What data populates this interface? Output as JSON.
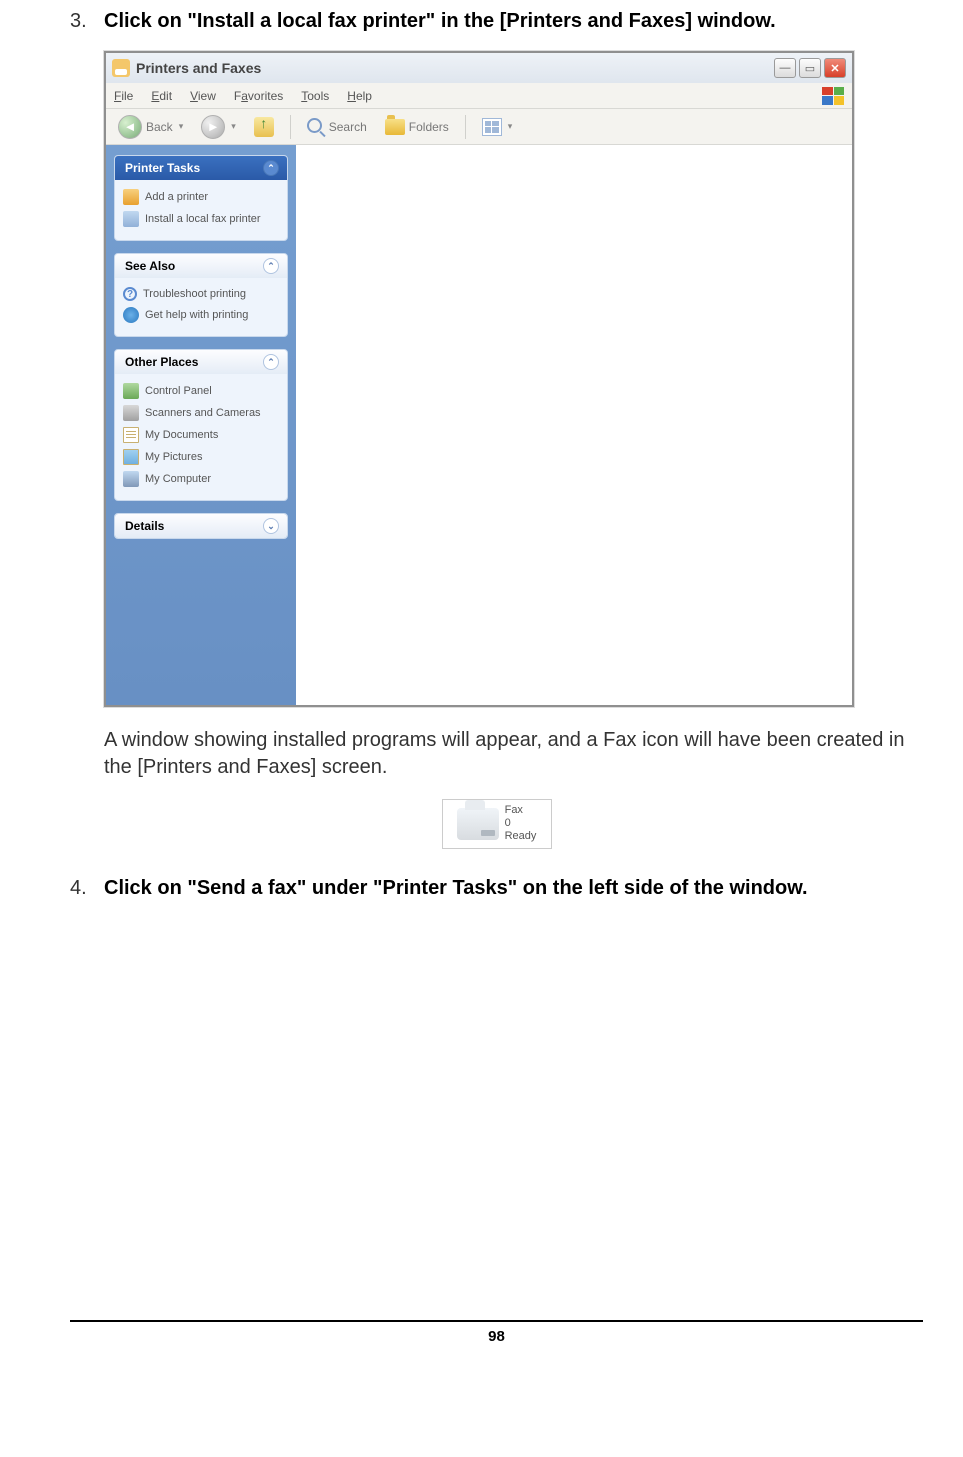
{
  "steps": {
    "s3": {
      "num": "3.",
      "text": "Click on \"Install a local fax printer\" in the [Printers and Faxes] window."
    },
    "desc": "A window showing installed programs will appear, and a Fax icon will have been created in the [Printers and Faxes] screen.",
    "s4": {
      "num": "4.",
      "text": "Click on \"Send a fax\" under \"Printer Tasks\" on the left side of the window."
    }
  },
  "window": {
    "title": "Printers and Faxes",
    "menus": {
      "file": "File",
      "edit": "Edit",
      "view": "View",
      "favorites": "Favorites",
      "tools": "Tools",
      "help": "Help"
    },
    "toolbar": {
      "back": "Back",
      "search": "Search",
      "folders": "Folders"
    },
    "panels": {
      "printer_tasks": {
        "title": "Printer Tasks",
        "items": {
          "add": "Add a printer",
          "install": "Install a local fax printer"
        }
      },
      "see_also": {
        "title": "See Also",
        "items": {
          "troubleshoot": "Troubleshoot printing",
          "help": "Get help with printing"
        }
      },
      "other_places": {
        "title": "Other Places",
        "items": {
          "cp": "Control Panel",
          "scanners": "Scanners and Cameras",
          "docs": "My Documents",
          "pics": "My Pictures",
          "computer": "My Computer"
        }
      },
      "details": {
        "title": "Details"
      }
    }
  },
  "fax_icon": {
    "name": "Fax",
    "count": "0",
    "status": "Ready"
  },
  "page_number": "98",
  "colors": {
    "title_grad_top": "#eef2f7",
    "title_grad_bot": "#dfe6ee",
    "close_top": "#f08b7a",
    "close_bot": "#d8402a",
    "sidebar_top": "#759ed0",
    "sidebar_bot": "#6890c4",
    "panel_bg": "#eef4fc",
    "primary_top": "#3a70c0",
    "primary_bot": "#2a5aa8"
  }
}
